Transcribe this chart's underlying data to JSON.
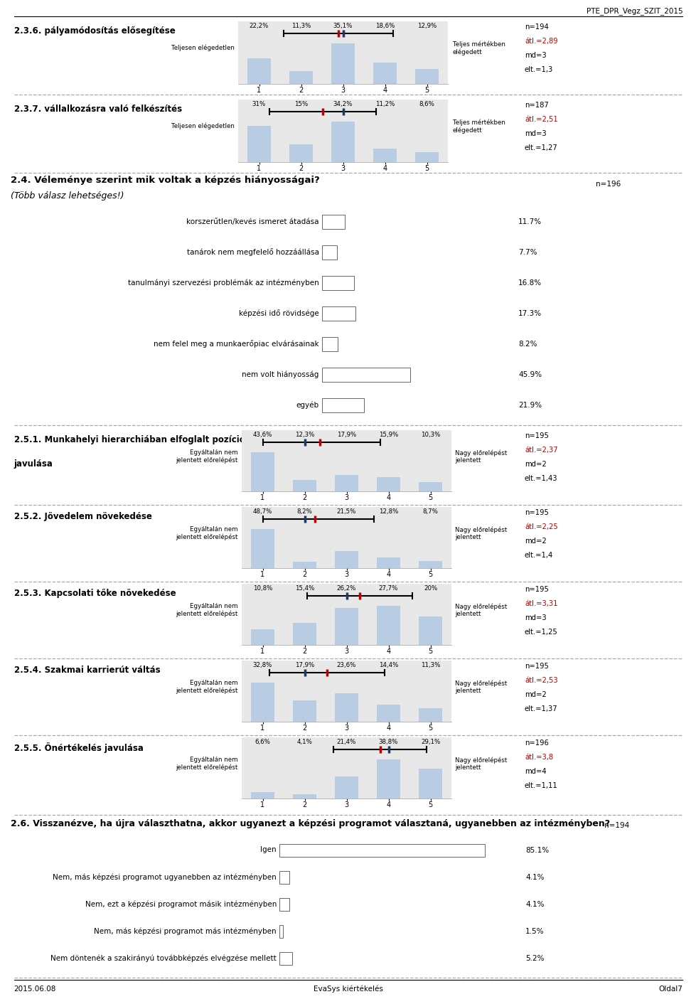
{
  "title_header": "PTE_DPR_Vegz_SZIT_2015",
  "footer_left": "2015.06.08",
  "footer_center": "EvaSys kiértékelés",
  "footer_right": "Oldal7",
  "bg_color": "#ffffff",
  "section_236": {
    "label": "2.3.6. pályamódosítás elősegítése",
    "left_label": "Teljesen elégedetlen",
    "right_label": "Teljes mértékben\nelégedett",
    "percentages": [
      "22,2%",
      "11,3%",
      "35,1%",
      "18,6%",
      "12,9%"
    ],
    "values": [
      22.2,
      11.3,
      35.1,
      18.6,
      12.9
    ],
    "mean": 2.89,
    "median": 3,
    "sd": 1.3,
    "n": 194,
    "stats_lines": [
      "n=194",
      "átl.=2,89",
      "md=3",
      "elt.=1,3"
    ]
  },
  "section_237": {
    "label": "2.3.7. vállalkozásra való felkészítés",
    "left_label": "Teljesen elégedetlen",
    "right_label": "Teljes mértékben\nelégedett",
    "percentages": [
      "31%",
      "15%",
      "34,2%",
      "11,2%",
      "8,6%"
    ],
    "values": [
      31.0,
      15.0,
      34.2,
      11.2,
      8.6
    ],
    "mean": 2.51,
    "median": 3,
    "sd": 1.27,
    "n": 187,
    "stats_lines": [
      "n=187",
      "átl.=2,51",
      "md=3",
      "elt.=1,27"
    ]
  },
  "section_24": {
    "title_bold": "2.4. Véleménye szerint mik voltak a képzés hiányosságai?",
    "title_italic": "(Több válasz lehetséges!)",
    "n": 196,
    "items": [
      {
        "label": "korszerűtlen/kevés ismeret átadása",
        "value": 11.7
      },
      {
        "label": "tanárok nem megfelelő hozzáállása",
        "value": 7.7
      },
      {
        "label": "tanulmányi szervezési problémák az intézményben",
        "value": 16.8
      },
      {
        "label": "képzési idő rövidsége",
        "value": 17.3
      },
      {
        "label": "nem felel meg a munkaerőpiac elvárásainak",
        "value": 8.2
      },
      {
        "label": "nem volt hiányosság",
        "value": 45.9
      },
      {
        "label": "egyéb",
        "value": 21.9
      }
    ]
  },
  "section_251": {
    "label": "2.5.1. Munkahelyi hierarchiában elfoglalt pozíció\njavulása",
    "left_label": "Egyáltalán nem\njelentett előrelépést",
    "right_label": "Nagy előrelépést\njelentett",
    "percentages": [
      "43,6%",
      "12,3%",
      "17,9%",
      "15,9%",
      "10,3%"
    ],
    "values": [
      43.6,
      12.3,
      17.9,
      15.9,
      10.3
    ],
    "mean": 2.37,
    "median": 2,
    "sd": 1.43,
    "n": 195,
    "stats_lines": [
      "n=195",
      "átl.=2,37",
      "md=2",
      "elt.=1,43"
    ]
  },
  "section_252": {
    "label": "2.5.2. Jövedelem növekedése",
    "left_label": "Egyáltalán nem\njelentett előrelépést",
    "right_label": "Nagy előrelépést\njelentett",
    "percentages": [
      "48,7%",
      "8,2%",
      "21,5%",
      "12,8%",
      "8,7%"
    ],
    "values": [
      48.7,
      8.2,
      21.5,
      12.8,
      8.7
    ],
    "mean": 2.25,
    "median": 2,
    "sd": 1.4,
    "n": 195,
    "stats_lines": [
      "n=195",
      "átl.=2,25",
      "md=2",
      "elt.=1,4"
    ]
  },
  "section_253": {
    "label": "2.5.3. Kapcsolati tőke növekedése",
    "left_label": "Egyáltalán nem\njelentett előrelépést",
    "right_label": "Nagy előrelépést\njelentett",
    "percentages": [
      "10,8%",
      "15,4%",
      "26,2%",
      "27,7%",
      "20%"
    ],
    "values": [
      10.8,
      15.4,
      26.2,
      27.7,
      20.0
    ],
    "mean": 3.31,
    "median": 3,
    "sd": 1.25,
    "n": 195,
    "stats_lines": [
      "n=195",
      "átl.=3,31",
      "md=3",
      "elt.=1,25"
    ]
  },
  "section_254": {
    "label": "2.5.4. Szakmai karrierút váltás",
    "left_label": "Egyáltalán nem\njelentett előrelépést",
    "right_label": "Nagy előrelépést\njelentett",
    "percentages": [
      "32,8%",
      "17,9%",
      "23,6%",
      "14,4%",
      "11,3%"
    ],
    "values": [
      32.8,
      17.9,
      23.6,
      14.4,
      11.3
    ],
    "mean": 2.53,
    "median": 2,
    "sd": 1.37,
    "n": 195,
    "stats_lines": [
      "n=195",
      "átl.=2,53",
      "md=2",
      "elt.=1,37"
    ]
  },
  "section_255": {
    "label": "2.5.5. Önértékelés javulása",
    "left_label": "Egyáltalán nem\njelentett előrelépést",
    "right_label": "Nagy előrelépést\njelentett",
    "percentages": [
      "6,6%",
      "4,1%",
      "21,4%",
      "38,8%",
      "29,1%"
    ],
    "values": [
      6.6,
      4.1,
      21.4,
      38.8,
      29.1
    ],
    "mean": 3.8,
    "median": 4,
    "sd": 1.11,
    "n": 196,
    "stats_lines": [
      "n=196",
      "átl.=3,8",
      "md=4",
      "elt.=1,11"
    ]
  },
  "section_26": {
    "title": "2.6. Visszanézve, ha újra választhatna, akkor ugyanezt a képzési programot választaná, ugyanebben az intézményben?",
    "n": 194,
    "items": [
      {
        "label": "Igen",
        "value": 85.1
      },
      {
        "label": "Nem, más képzési programot ugyanebben az intézményben",
        "value": 4.1
      },
      {
        "label": "Nem, ezt a képzési programot másik intézményben",
        "value": 4.1
      },
      {
        "label": "Nem, más képzési programot más intézményben",
        "value": 1.5
      },
      {
        "label": "Nem döntenék a szakirányú továbbképzés elvégzése mellett",
        "value": 5.2
      }
    ]
  },
  "bar_color_light": "#b8cce4",
  "mean_color": "#c00000",
  "median_color": "#1f3864",
  "dashed_line_color": "#aaaaaa",
  "chart_bg": "#e8e8e8"
}
